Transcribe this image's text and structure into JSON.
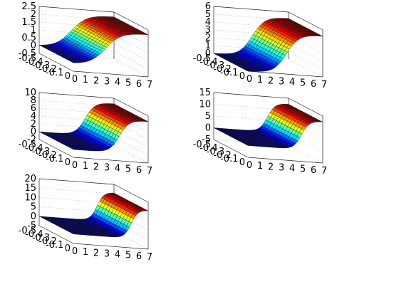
{
  "chart_data": [
    {
      "type": "surface",
      "title": "",
      "xlabel": "",
      "ylabel": "",
      "zlabel": "",
      "x_ticks": [
        "0",
        "1",
        "2",
        "3",
        "4",
        "5",
        "6",
        "7"
      ],
      "y_ticks": [
        "-0.5",
        "-0.4",
        "-0.3",
        "-0.2",
        "-0.1",
        "0"
      ],
      "z_ticks": [
        "-0.5",
        "0",
        "0.5",
        "1",
        "1.5",
        "2",
        "2.5"
      ],
      "xlim": [
        0,
        7
      ],
      "ylim": [
        -0.5,
        0
      ],
      "zlim": [
        -0.5,
        2.5
      ],
      "z_min": 0,
      "z_max": 2.2,
      "transition_center_x": 3.0,
      "transition_width": 1.6,
      "grid": true,
      "colormap": "jet"
    },
    {
      "type": "surface",
      "title": "",
      "xlabel": "",
      "ylabel": "",
      "zlabel": "",
      "x_ticks": [
        "0",
        "1",
        "2",
        "3",
        "4",
        "5",
        "6",
        "7"
      ],
      "y_ticks": [
        "-0.5",
        "-0.4",
        "-0.3",
        "-0.2",
        "-0.1",
        "0"
      ],
      "z_ticks": [
        "0",
        "1",
        "2",
        "3",
        "4",
        "5",
        "6"
      ],
      "xlim": [
        0,
        7
      ],
      "ylim": [
        -0.5,
        0
      ],
      "zlim": [
        0,
        6
      ],
      "z_min": 0,
      "z_max": 5.2,
      "transition_center_x": 3.6,
      "transition_width": 1.3,
      "grid": true,
      "colormap": "jet"
    },
    {
      "type": "surface",
      "title": "",
      "xlabel": "",
      "ylabel": "",
      "zlabel": "",
      "x_ticks": [
        "0",
        "1",
        "2",
        "3",
        "4",
        "5",
        "6",
        "7"
      ],
      "y_ticks": [
        "-0.5",
        "-0.4",
        "-0.3",
        "-0.2",
        "-0.1",
        "0"
      ],
      "z_ticks": [
        "-2",
        "0",
        "2",
        "4",
        "6",
        "8",
        "10"
      ],
      "xlim": [
        0,
        7
      ],
      "ylim": [
        -0.5,
        0
      ],
      "zlim": [
        -2,
        10
      ],
      "z_min": 0,
      "z_max": 8.6,
      "transition_center_x": 4.3,
      "transition_width": 1.0,
      "grid": true,
      "colormap": "jet"
    },
    {
      "type": "surface",
      "title": "",
      "xlabel": "",
      "ylabel": "",
      "zlabel": "",
      "x_ticks": [
        "0",
        "1",
        "2",
        "3",
        "4",
        "5",
        "6",
        "7"
      ],
      "y_ticks": [
        "-0.5",
        "-0.4",
        "-0.3",
        "-0.2",
        "-0.1",
        "0"
      ],
      "z_ticks": [
        "-5",
        "0",
        "5",
        "10",
        "15"
      ],
      "xlim": [
        0,
        7
      ],
      "ylim": [
        -0.5,
        0
      ],
      "zlim": [
        -5,
        15
      ],
      "z_min": 0,
      "z_max": 12.5,
      "transition_center_x": 5.0,
      "transition_width": 0.8,
      "grid": true,
      "colormap": "jet"
    },
    {
      "type": "surface",
      "title": "",
      "xlabel": "",
      "ylabel": "",
      "zlabel": "",
      "x_ticks": [
        "0",
        "1",
        "2",
        "3",
        "4",
        "5",
        "6",
        "7"
      ],
      "y_ticks": [
        "-0.5",
        "-0.4",
        "-0.3",
        "-0.2",
        "-0.1",
        "0"
      ],
      "z_ticks": [
        "-5",
        "0",
        "5",
        "10",
        "15",
        "20"
      ],
      "xlim": [
        0,
        7
      ],
      "ylim": [
        -0.5,
        0
      ],
      "zlim": [
        -5,
        20
      ],
      "z_min": 0,
      "z_max": 15.5,
      "transition_center_x": 5.4,
      "transition_width": 0.7,
      "grid": true,
      "colormap": "jet"
    }
  ]
}
